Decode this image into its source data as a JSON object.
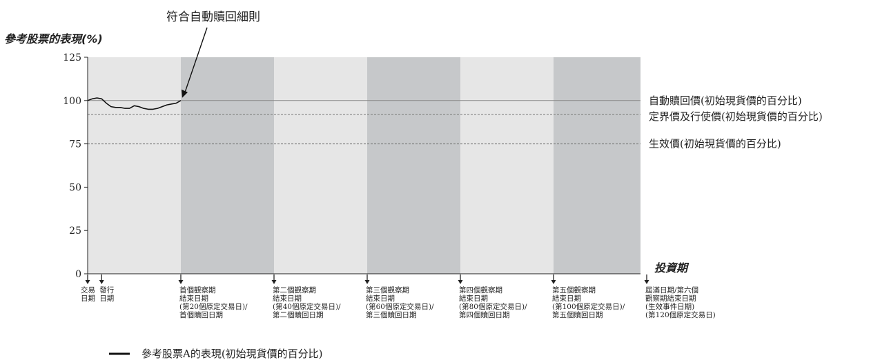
{
  "chart_data": {
    "type": "line",
    "title": "符合自動贖回細則",
    "ylabel": "參考股票的表現(%)",
    "xlabel": "投資期",
    "ylim": [
      0,
      125
    ],
    "yticks": [
      0,
      25,
      50,
      75,
      100,
      125
    ],
    "grid": false,
    "legend_position": "bottom-left",
    "period_colors": [
      "#e6e6e6",
      "#c6c8ca"
    ],
    "colors": {
      "line": "#111111",
      "ref_solid": "#888888",
      "ref_dash": "#777777"
    },
    "reference_lines": [
      {
        "value": 100,
        "label": "自動贖回價(初始現貨價的百分比)",
        "style": "solid"
      },
      {
        "value": 92,
        "label": "定界價及行使價(初始現貨價的百分比)",
        "style": "dashed"
      },
      {
        "value": 75,
        "label": "生效價(初始現貨價的百分比)",
        "style": "dashed"
      }
    ],
    "x_markers": [
      {
        "day": 0,
        "lines": [
          "交易",
          "日期"
        ]
      },
      {
        "day": 3,
        "lines": [
          "發行",
          "日期"
        ]
      },
      {
        "day": 20,
        "lines": [
          "首個觀察期",
          "結束日期",
          "(第20個原定交易日)/",
          "首個贖回日期"
        ]
      },
      {
        "day": 40,
        "lines": [
          "第二個觀察期",
          "結束日期",
          "(第40個原定交易日)/",
          "第二個贖回日期"
        ]
      },
      {
        "day": 60,
        "lines": [
          "第三個觀察期",
          "結束日期",
          "(第60個原定交易日)/",
          "第三個贖回日期"
        ]
      },
      {
        "day": 80,
        "lines": [
          "第四個觀察期",
          "結束日期",
          "(第80個原定交易日)/",
          "第四個贖回日期"
        ]
      },
      {
        "day": 100,
        "lines": [
          "第五個觀察期",
          "結束日期",
          "(第100個原定交易日)/",
          "第五個贖回日期"
        ]
      },
      {
        "day": 120,
        "lines": [
          "屆滿日期/第六個",
          "觀察期結束日期",
          "(生效事件日期)",
          "(第120個原定交易日)"
        ]
      }
    ],
    "xlim": [
      0,
      122
    ],
    "series": [
      {
        "name": "參考股票A的表現(初始現貨價的百分比)",
        "x": [
          0,
          1,
          2,
          3,
          4,
          5,
          6,
          7,
          8,
          9,
          10,
          11,
          12,
          13,
          14,
          15,
          16,
          17,
          18,
          19,
          20
        ],
        "values": [
          100,
          101,
          101.5,
          101,
          98.5,
          96.5,
          96,
          96,
          95.5,
          95.5,
          97,
          96.5,
          95.5,
          95,
          95,
          95.5,
          96.5,
          97.5,
          98,
          98.5,
          100
        ]
      }
    ]
  }
}
